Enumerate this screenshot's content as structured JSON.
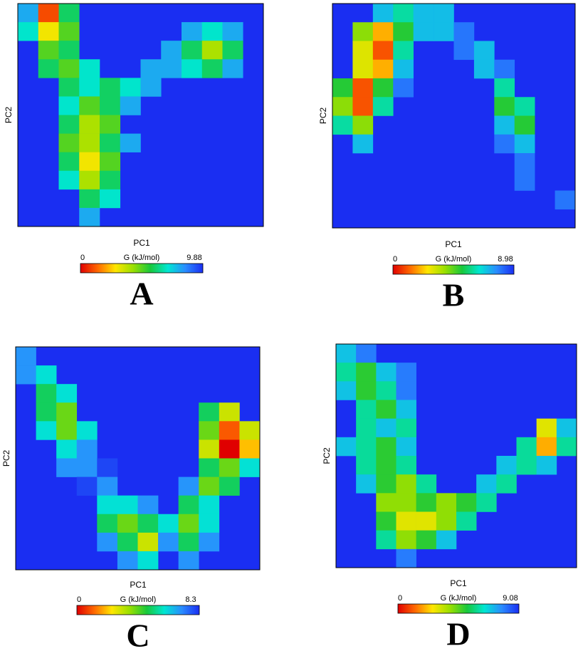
{
  "chart_data": [
    {
      "type": "heatmap",
      "panel_label": "A",
      "xlabel": "PC1",
      "ylabel": "PC2",
      "colorbar_label": "G (kJ/mol)",
      "zlim": [
        0,
        9.88
      ],
      "colormap": [
        "#e00000",
        "#ff6a00",
        "#ffe600",
        "#9be000",
        "#18c83c",
        "#00e6d2",
        "#2a8cff",
        "#1a2ef2"
      ],
      "z": [
        [
          8,
          1,
          6,
          null,
          null,
          null,
          null,
          null,
          null,
          null,
          null,
          null
        ],
        [
          7,
          3,
          5,
          null,
          null,
          null,
          null,
          null,
          8,
          7,
          8,
          null
        ],
        [
          null,
          5,
          6,
          null,
          null,
          null,
          null,
          8,
          6,
          4,
          6,
          null
        ],
        [
          null,
          6,
          5,
          7,
          null,
          null,
          8,
          8,
          7,
          6,
          8,
          null
        ],
        [
          null,
          null,
          6,
          7,
          6,
          7,
          8,
          null,
          null,
          null,
          null,
          null
        ],
        [
          null,
          null,
          7,
          5,
          6,
          8,
          null,
          null,
          null,
          null,
          null,
          null
        ],
        [
          null,
          null,
          6,
          4,
          5,
          null,
          null,
          null,
          null,
          null,
          null,
          null
        ],
        [
          null,
          null,
          5,
          4,
          6,
          8,
          null,
          null,
          null,
          null,
          null,
          null
        ],
        [
          null,
          null,
          6,
          3,
          5,
          null,
          null,
          null,
          null,
          null,
          null,
          null
        ],
        [
          null,
          null,
          7,
          4,
          6,
          null,
          null,
          null,
          null,
          null,
          null,
          null
        ],
        [
          null,
          null,
          null,
          6,
          7,
          null,
          null,
          null,
          null,
          null,
          null,
          null
        ],
        [
          null,
          null,
          null,
          8,
          null,
          null,
          null,
          null,
          null,
          null,
          null,
          null
        ]
      ]
    },
    {
      "type": "heatmap",
      "panel_label": "B",
      "xlabel": "PC1",
      "ylabel": "PC2",
      "colorbar_label": "G (kJ/mol)",
      "zlim": [
        0,
        8.98
      ],
      "colormap": [
        "#e00000",
        "#ff6a00",
        "#ffe600",
        "#9be000",
        "#18c83c",
        "#00e6d2",
        "#2a8cff",
        "#1a2ef2"
      ],
      "z": [
        [
          null,
          null,
          7,
          6,
          7,
          7,
          null,
          null,
          null,
          null,
          null,
          null
        ],
        [
          null,
          4,
          2,
          5,
          7,
          7,
          8,
          null,
          null,
          null,
          null,
          null
        ],
        [
          null,
          3,
          1,
          6,
          null,
          null,
          8,
          7,
          null,
          null,
          null,
          null
        ],
        [
          null,
          3,
          2,
          7,
          null,
          null,
          null,
          7,
          8,
          null,
          null,
          null
        ],
        [
          5,
          1,
          5,
          8,
          null,
          null,
          null,
          null,
          6,
          null,
          null,
          null
        ],
        [
          4,
          1,
          6,
          null,
          null,
          null,
          null,
          null,
          5,
          6,
          null,
          null
        ],
        [
          6,
          4,
          null,
          null,
          null,
          null,
          null,
          null,
          7,
          5,
          null,
          null
        ],
        [
          null,
          7,
          null,
          null,
          null,
          null,
          null,
          null,
          8,
          7,
          null,
          null
        ],
        [
          null,
          null,
          null,
          null,
          null,
          null,
          null,
          null,
          null,
          8,
          null,
          null
        ],
        [
          null,
          null,
          null,
          null,
          null,
          null,
          null,
          null,
          null,
          8,
          null,
          null
        ],
        [
          null,
          null,
          null,
          null,
          null,
          null,
          null,
          null,
          null,
          null,
          null,
          8
        ],
        [
          null,
          null,
          null,
          null,
          null,
          null,
          null,
          null,
          null,
          null,
          null,
          null
        ]
      ]
    },
    {
      "type": "heatmap",
      "panel_label": "C",
      "xlabel": "PC1",
      "ylabel": "PC2",
      "colorbar_label": "G (kJ/mol)",
      "zlim": [
        0,
        8.3
      ],
      "colormap": [
        "#e00000",
        "#ff6a00",
        "#ffe600",
        "#9be000",
        "#18c83c",
        "#00e6d2",
        "#2a8cff",
        "#1a2ef2"
      ],
      "z": [
        [
          7,
          null,
          null,
          null,
          null,
          null,
          null,
          null,
          null,
          null,
          null,
          null
        ],
        [
          7,
          6,
          null,
          null,
          null,
          null,
          null,
          null,
          null,
          null,
          null,
          null
        ],
        [
          null,
          5,
          6,
          null,
          null,
          null,
          null,
          null,
          null,
          null,
          null,
          null
        ],
        [
          null,
          5,
          4,
          null,
          null,
          null,
          null,
          null,
          null,
          5,
          3,
          null
        ],
        [
          null,
          6,
          4,
          6,
          null,
          null,
          null,
          null,
          null,
          4,
          1,
          3
        ],
        [
          null,
          null,
          6,
          7,
          null,
          null,
          null,
          null,
          null,
          3,
          0,
          2
        ],
        [
          null,
          null,
          7,
          7,
          8,
          null,
          null,
          null,
          null,
          5,
          4,
          6
        ],
        [
          null,
          null,
          null,
          8,
          7,
          null,
          null,
          null,
          7,
          4,
          5,
          null
        ],
        [
          null,
          null,
          null,
          null,
          6,
          6,
          7,
          null,
          5,
          6,
          null,
          null
        ],
        [
          null,
          null,
          null,
          null,
          5,
          4,
          5,
          6,
          4,
          6,
          null,
          null
        ],
        [
          null,
          null,
          null,
          null,
          7,
          5,
          3,
          7,
          5,
          7,
          null,
          null
        ],
        [
          null,
          null,
          null,
          null,
          null,
          7,
          6,
          null,
          7,
          null,
          null,
          null
        ]
      ]
    },
    {
      "type": "heatmap",
      "panel_label": "D",
      "xlabel": "PC1",
      "ylabel": "PC2",
      "colorbar_label": "G (kJ/mol)",
      "zlim": [
        0,
        9.08
      ],
      "colormap": [
        "#e00000",
        "#ff6a00",
        "#ffe600",
        "#9be000",
        "#18c83c",
        "#00e6d2",
        "#2a8cff",
        "#1a2ef2"
      ],
      "z": [
        [
          7,
          8,
          null,
          null,
          null,
          null,
          null,
          null,
          null,
          null,
          null,
          null
        ],
        [
          6,
          5,
          7,
          8,
          null,
          null,
          null,
          null,
          null,
          null,
          null,
          null
        ],
        [
          7,
          5,
          6,
          8,
          null,
          null,
          null,
          null,
          null,
          null,
          null,
          null
        ],
        [
          null,
          6,
          5,
          7,
          null,
          null,
          null,
          null,
          null,
          null,
          null,
          null
        ],
        [
          null,
          6,
          7,
          6,
          null,
          null,
          null,
          null,
          null,
          null,
          3,
          7
        ],
        [
          7,
          6,
          5,
          7,
          null,
          null,
          null,
          null,
          null,
          6,
          2,
          6
        ],
        [
          null,
          6,
          5,
          6,
          null,
          null,
          null,
          null,
          7,
          6,
          7,
          null
        ],
        [
          null,
          7,
          5,
          4,
          6,
          null,
          null,
          7,
          6,
          null,
          null,
          null
        ],
        [
          null,
          null,
          4,
          4,
          5,
          4,
          5,
          6,
          null,
          null,
          null,
          null
        ],
        [
          null,
          null,
          5,
          3,
          3,
          4,
          6,
          null,
          null,
          null,
          null,
          null
        ],
        [
          null,
          null,
          6,
          4,
          5,
          7,
          null,
          null,
          null,
          null,
          null,
          null
        ],
        [
          null,
          null,
          null,
          8,
          null,
          null,
          null,
          null,
          null,
          null,
          null,
          null
        ]
      ]
    }
  ]
}
